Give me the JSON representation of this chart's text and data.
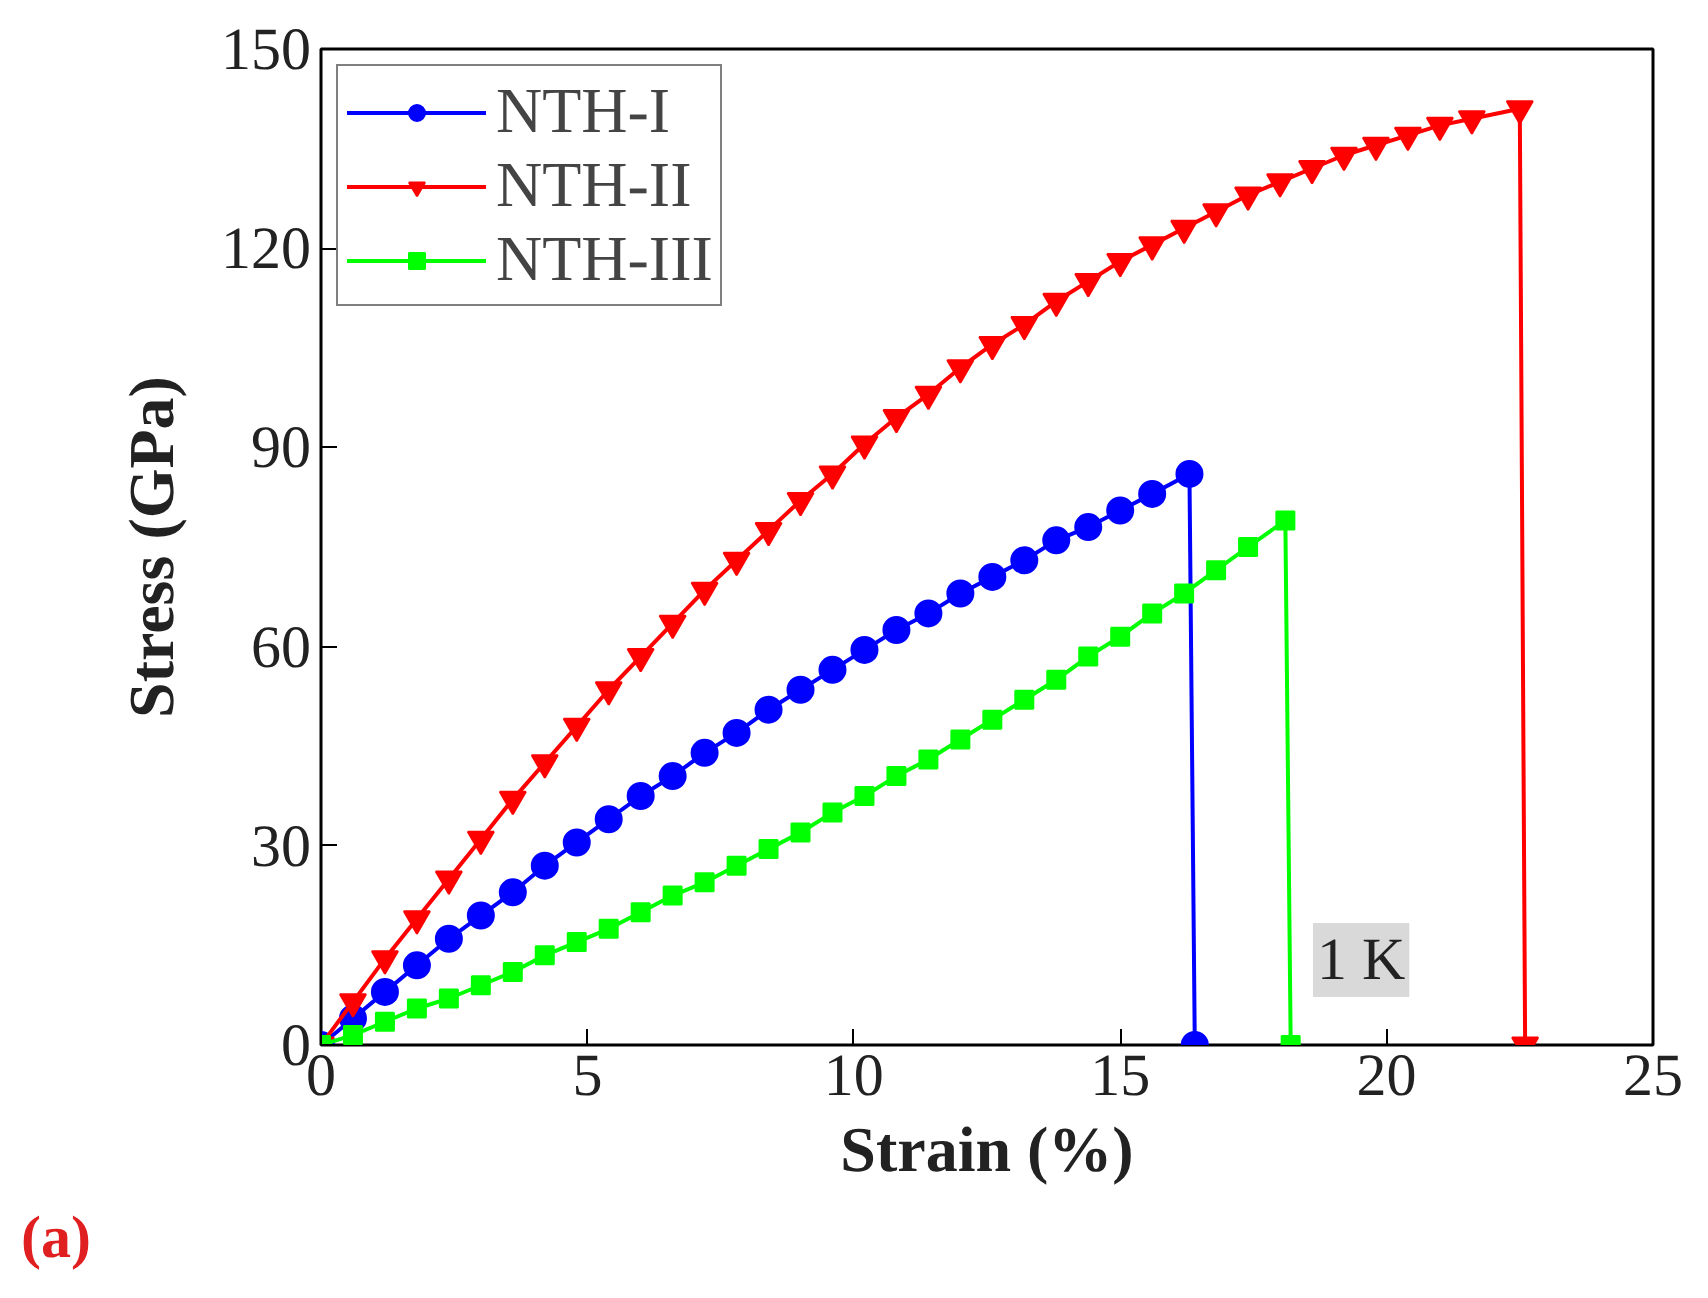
{
  "chart_data": {
    "type": "line",
    "xlabel": "Strain (%)",
    "ylabel": "Stress (GPa)",
    "xlim": [
      0,
      25
    ],
    "ylim": [
      0,
      150
    ],
    "xticks": [
      0,
      5,
      10,
      15,
      20,
      25
    ],
    "yticks": [
      0,
      30,
      60,
      90,
      120,
      150
    ],
    "legend": "top left",
    "grid": false,
    "annotations": [
      "1 K",
      "(a)"
    ],
    "series": [
      {
        "name": "NTH-I",
        "color": "#0000ff",
        "marker": "circle",
        "x": [
          0,
          0.6,
          1.2,
          1.8,
          2.4,
          3.0,
          3.6,
          4.2,
          4.8,
          5.4,
          6.0,
          6.6,
          7.2,
          7.8,
          8.4,
          9.0,
          9.6,
          10.2,
          10.8,
          11.4,
          12.0,
          12.6,
          13.2,
          13.8,
          14.4,
          15.0,
          15.6,
          16.3,
          16.4
        ],
        "values": [
          0,
          4,
          8,
          12,
          16,
          19.5,
          23,
          27,
          30.5,
          34,
          37.5,
          40.5,
          44,
          47,
          50.5,
          53.5,
          56.5,
          59.5,
          62.5,
          65,
          68,
          70.5,
          73,
          76,
          78,
          80.5,
          83,
          86,
          0
        ]
      },
      {
        "name": "NTH-II",
        "color": "#ff0000",
        "marker": "triangle",
        "x": [
          0,
          0.6,
          1.2,
          1.8,
          2.4,
          3.0,
          3.6,
          4.2,
          4.8,
          5.4,
          6.0,
          6.6,
          7.2,
          7.8,
          8.4,
          9.0,
          9.6,
          10.2,
          10.8,
          11.4,
          12.0,
          12.6,
          13.2,
          13.8,
          14.4,
          15.0,
          15.6,
          16.2,
          16.8,
          17.4,
          18.0,
          18.6,
          19.2,
          19.8,
          20.4,
          21.0,
          21.6,
          22.5,
          22.6
        ],
        "values": [
          0,
          6.5,
          13,
          19,
          25,
          31,
          37,
          42.5,
          48,
          53.5,
          58.5,
          63.5,
          68.5,
          73,
          77.5,
          82,
          86,
          90.5,
          94.5,
          98,
          102,
          105.5,
          108.5,
          112,
          115,
          118,
          120.5,
          123,
          125.5,
          128,
          130,
          132,
          134,
          135.5,
          137,
          138.5,
          139.5,
          141,
          0
        ]
      },
      {
        "name": "NTH-III",
        "color": "#00ff00",
        "marker": "square",
        "x": [
          0,
          0.6,
          1.2,
          1.8,
          2.4,
          3.0,
          3.6,
          4.2,
          4.8,
          5.4,
          6.0,
          6.6,
          7.2,
          7.8,
          8.4,
          9.0,
          9.6,
          10.2,
          10.8,
          11.4,
          12.0,
          12.6,
          13.2,
          13.8,
          14.4,
          15.0,
          15.6,
          16.2,
          16.8,
          17.4,
          18.1,
          18.2
        ],
        "values": [
          0,
          1.5,
          3.5,
          5.5,
          7,
          9,
          11,
          13.5,
          15.5,
          17.5,
          20,
          22.5,
          24.5,
          27,
          29.5,
          32,
          35,
          37.5,
          40.5,
          43,
          46,
          49,
          52,
          55,
          58.5,
          61.5,
          65,
          68,
          71.5,
          75,
          79,
          0
        ]
      }
    ]
  }
}
